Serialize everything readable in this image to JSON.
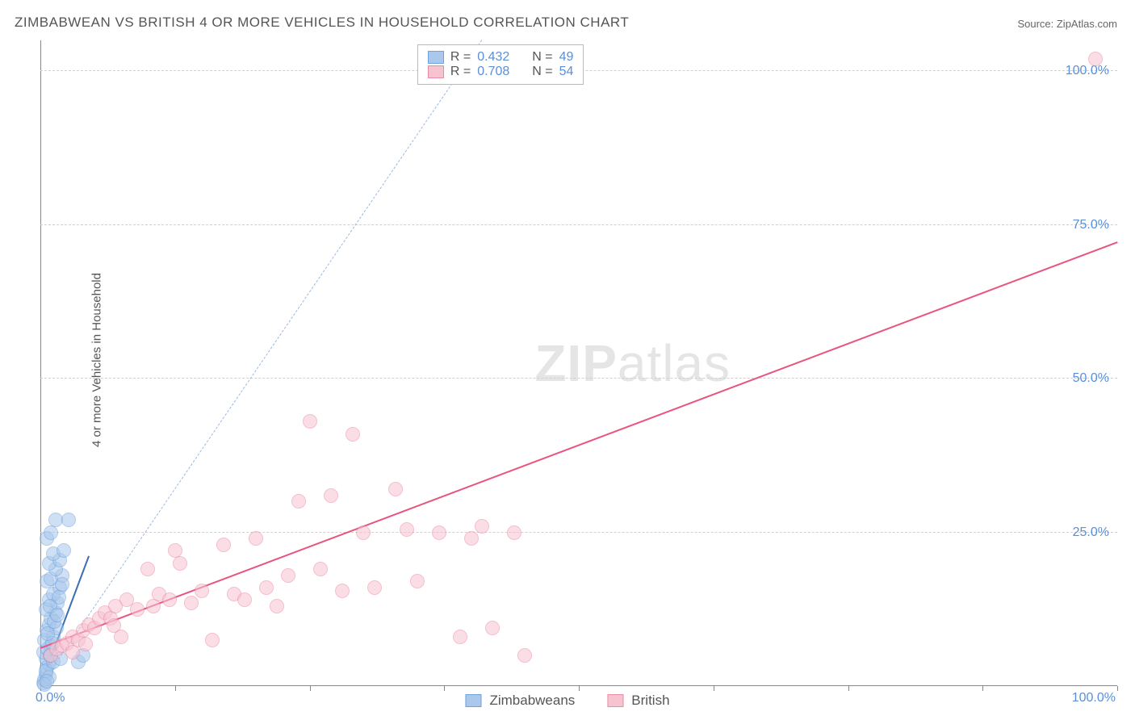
{
  "title": "ZIMBABWEAN VS BRITISH 4 OR MORE VEHICLES IN HOUSEHOLD CORRELATION CHART",
  "source": "Source: ZipAtlas.com",
  "ylabel": "4 or more Vehicles in Household",
  "watermark_a": "ZIP",
  "watermark_b": "atlas",
  "chart": {
    "type": "scatter",
    "background_color": "#ffffff",
    "grid_color": "#d0d0d0",
    "axis_color": "#888888",
    "xlim": [
      0,
      100
    ],
    "ylim": [
      0,
      105
    ],
    "xticks": [
      0,
      12.5,
      25,
      37.5,
      50,
      62.5,
      75,
      87.5,
      100
    ],
    "yticks_labeled": [
      25,
      50,
      75,
      100
    ],
    "x_label_0": "0.0%",
    "x_label_100": "100.0%",
    "y_labels": [
      "25.0%",
      "50.0%",
      "75.0%",
      "100.0%"
    ],
    "tick_label_color": "#5b8fd6",
    "tick_label_fontsize": 16,
    "marker_radius": 9,
    "marker_opacity": 0.55,
    "series": [
      {
        "name": "Zimbabweans",
        "color_fill": "#a9c8ec",
        "color_stroke": "#6fa3db",
        "R": "0.432",
        "N": "49",
        "trend": {
          "x1": 0,
          "y1": 0,
          "x2": 4.5,
          "y2": 21,
          "color": "#3b6fb5",
          "width": 2.3,
          "dash": "none"
        },
        "reference_line": {
          "x1": 0,
          "y1": 0,
          "x2": 41,
          "y2": 105,
          "color": "#9bb9e0",
          "width": 1.2,
          "dash": "6,6"
        },
        "points": [
          [
            0.3,
            0.5
          ],
          [
            0.4,
            1
          ],
          [
            0.5,
            2
          ],
          [
            0.6,
            3
          ],
          [
            0.8,
            3.5
          ],
          [
            0.5,
            4.5
          ],
          [
            0.3,
            5.5
          ],
          [
            0.7,
            6
          ],
          [
            1,
            6.5
          ],
          [
            0.4,
            7.5
          ],
          [
            1.2,
            8
          ],
          [
            0.6,
            9
          ],
          [
            0.8,
            10
          ],
          [
            1,
            11
          ],
          [
            1.4,
            12
          ],
          [
            0.5,
            12.5
          ],
          [
            1.6,
            13.5
          ],
          [
            0.8,
            14
          ],
          [
            1.2,
            15
          ],
          [
            1.8,
            16
          ],
          [
            0.6,
            17
          ],
          [
            1,
            17.5
          ],
          [
            2,
            18
          ],
          [
            1.4,
            19
          ],
          [
            0.8,
            20
          ],
          [
            1.8,
            20.5
          ],
          [
            1.2,
            21.5
          ],
          [
            2.2,
            22
          ],
          [
            0.6,
            24
          ],
          [
            1,
            25
          ],
          [
            1.4,
            27
          ],
          [
            2.6,
            27
          ],
          [
            0.8,
            1.5
          ],
          [
            0.5,
            2.5
          ],
          [
            1.2,
            4
          ],
          [
            0.9,
            5
          ],
          [
            1.5,
            9.5
          ],
          [
            1.1,
            7
          ],
          [
            0.7,
            8.5
          ],
          [
            1.3,
            10.5
          ],
          [
            1.7,
            14.5
          ],
          [
            2,
            16.5
          ],
          [
            0.9,
            13
          ],
          [
            1.6,
            11.5
          ],
          [
            0.4,
            0.3
          ],
          [
            0.6,
            0.8
          ],
          [
            1.9,
            4.5
          ],
          [
            3.5,
            4
          ],
          [
            4,
            5
          ]
        ]
      },
      {
        "name": "British",
        "color_fill": "#f6c3d1",
        "color_stroke": "#ec8aa7",
        "R": "0.708",
        "N": "54",
        "trend": {
          "x1": 0,
          "y1": 6,
          "x2": 100,
          "y2": 72,
          "color": "#e8547e",
          "width": 2.3,
          "dash": "none"
        },
        "points": [
          [
            1,
            5
          ],
          [
            1.5,
            6
          ],
          [
            2,
            6.5
          ],
          [
            2.5,
            7
          ],
          [
            3,
            8
          ],
          [
            3.5,
            7.5
          ],
          [
            4,
            9
          ],
          [
            4.5,
            10
          ],
          [
            5,
            9.5
          ],
          [
            5.5,
            11
          ],
          [
            6,
            12
          ],
          [
            6.5,
            11
          ],
          [
            7,
            13
          ],
          [
            7.5,
            8
          ],
          [
            8,
            14
          ],
          [
            9,
            12.5
          ],
          [
            10,
            19
          ],
          [
            10.5,
            13
          ],
          [
            11,
            15
          ],
          [
            12,
            14
          ],
          [
            12.5,
            22
          ],
          [
            13,
            20
          ],
          [
            14,
            13.5
          ],
          [
            15,
            15.5
          ],
          [
            16,
            7.5
          ],
          [
            17,
            23
          ],
          [
            18,
            15
          ],
          [
            19,
            14
          ],
          [
            20,
            24
          ],
          [
            21,
            16
          ],
          [
            22,
            13
          ],
          [
            23,
            18
          ],
          [
            24,
            30
          ],
          [
            25,
            43
          ],
          [
            26,
            19
          ],
          [
            27,
            31
          ],
          [
            28,
            15.5
          ],
          [
            29,
            41
          ],
          [
            30,
            25
          ],
          [
            31,
            16
          ],
          [
            33,
            32
          ],
          [
            34,
            25.5
          ],
          [
            35,
            17
          ],
          [
            37,
            25
          ],
          [
            39,
            8
          ],
          [
            40,
            24
          ],
          [
            41,
            26
          ],
          [
            42,
            9.5
          ],
          [
            44,
            25
          ],
          [
            45,
            5
          ],
          [
            98,
            102
          ],
          [
            3,
            5.5
          ],
          [
            4.2,
            6.8
          ],
          [
            6.8,
            9.8
          ]
        ]
      }
    ]
  },
  "legend_top": {
    "R_label": "R =",
    "N_label": "N ="
  },
  "legend_bottom": {
    "items": [
      "Zimbabweans",
      "British"
    ]
  }
}
